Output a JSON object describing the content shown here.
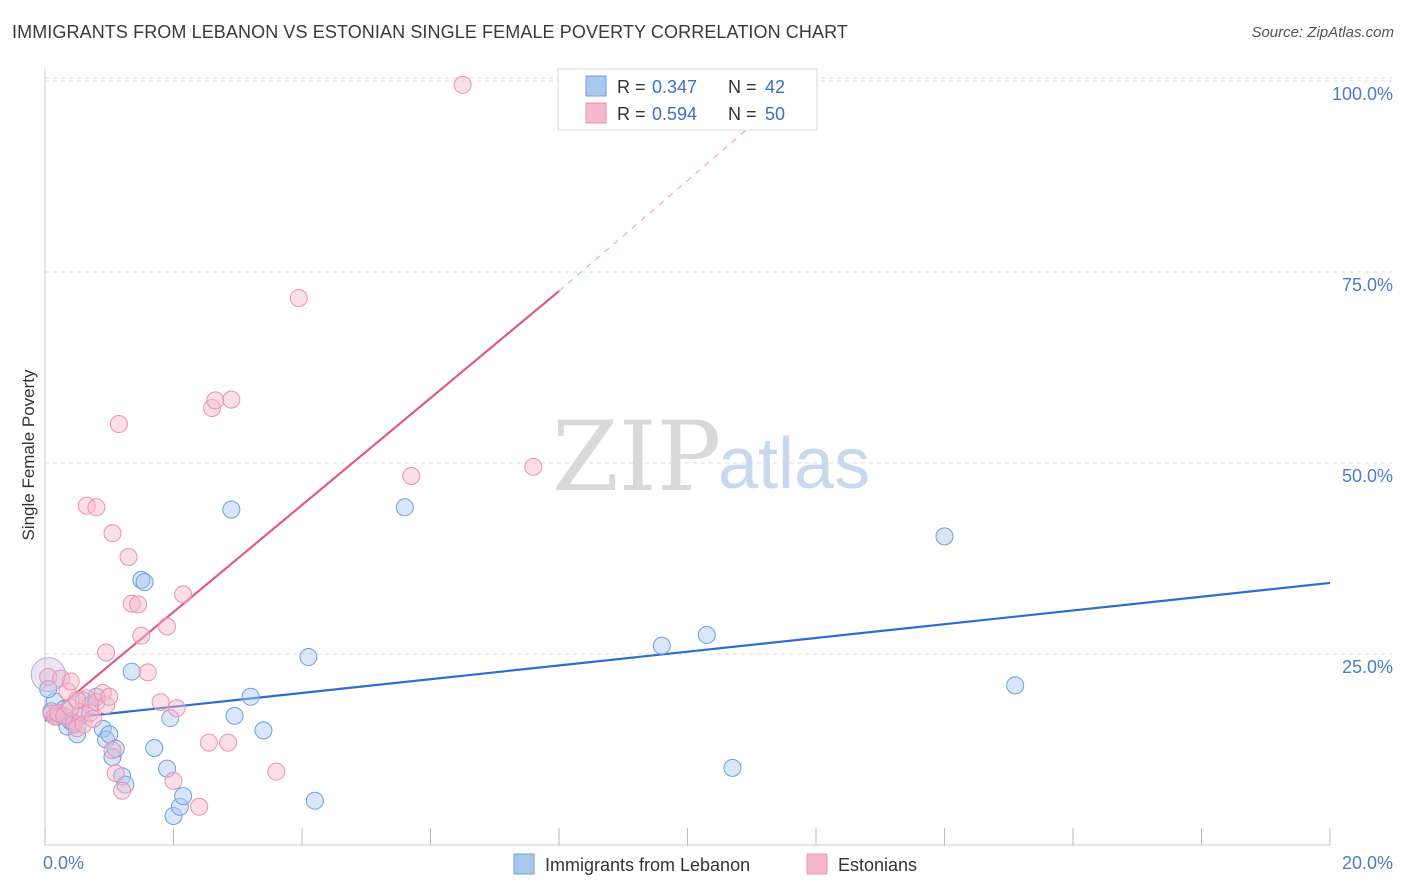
{
  "title": "IMMIGRANTS FROM LEBANON VS ESTONIAN SINGLE FEMALE POVERTY CORRELATION CHART",
  "source": "Source: ZipAtlas.com",
  "watermark": {
    "zip": "ZIP",
    "atlas": "atlas"
  },
  "legend_top": {
    "rows": [
      {
        "r_label": "R = ",
        "r_value": "0.347",
        "n_label": "N = ",
        "n_value": "42",
        "color": "#a8c8f0"
      },
      {
        "r_label": "R = ",
        "r_value": "0.594",
        "n_label": "N = ",
        "n_value": "50",
        "color": "#f5b8cc"
      }
    ]
  },
  "legend_bottom": [
    {
      "label": "Immigrants from Lebanon",
      "color": "#a8c8f0"
    },
    {
      "label": "Estonians",
      "color": "#f5b8cc"
    }
  ],
  "chart_data": {
    "type": "scatter",
    "title": "IMMIGRANTS FROM LEBANON VS ESTONIAN SINGLE FEMALE POVERTY CORRELATION CHART",
    "xlabel": "",
    "ylabel": "Single Female Poverty",
    "xlim": [
      0,
      20
    ],
    "ylim": [
      0,
      100
    ],
    "x_tick_labels": [
      "0.0%",
      "20.0%"
    ],
    "y_ticks": [
      25,
      50,
      75,
      100
    ],
    "y_tick_labels": [
      "25.0%",
      "50.0%",
      "75.0%",
      "100.0%"
    ],
    "grid": true,
    "series": [
      {
        "name": "Immigrants from Lebanon",
        "color": "#6fa0e0",
        "line_color": "#2a6fd0",
        "trend": {
          "x0": 0,
          "y0": 16.3,
          "x1": 20,
          "y1": 34.3
        },
        "points": [
          [
            0.1,
            17.5
          ],
          [
            0.15,
            18.8
          ],
          [
            0.2,
            16.8
          ],
          [
            0.25,
            17.0
          ],
          [
            0.3,
            17.8
          ],
          [
            0.35,
            15.5
          ],
          [
            0.4,
            16.2
          ],
          [
            0.45,
            15.8
          ],
          [
            0.5,
            14.5
          ],
          [
            0.55,
            16.9
          ],
          [
            0.6,
            18.9
          ],
          [
            0.7,
            18.3
          ],
          [
            0.8,
            19.4
          ],
          [
            0.9,
            15.2
          ],
          [
            0.95,
            13.8
          ],
          [
            1.0,
            14.5
          ],
          [
            1.05,
            11.5
          ],
          [
            1.1,
            12.6
          ],
          [
            1.2,
            9.0
          ],
          [
            1.25,
            7.9
          ],
          [
            1.35,
            22.7
          ],
          [
            1.5,
            34.7
          ],
          [
            1.55,
            34.4
          ],
          [
            1.7,
            12.7
          ],
          [
            1.9,
            10.0
          ],
          [
            1.95,
            16.6
          ],
          [
            2.0,
            3.8
          ],
          [
            2.1,
            5.0
          ],
          [
            2.15,
            6.4
          ],
          [
            2.9,
            43.9
          ],
          [
            2.95,
            16.9
          ],
          [
            3.2,
            19.4
          ],
          [
            3.4,
            15.0
          ],
          [
            4.1,
            24.6
          ],
          [
            4.2,
            5.8
          ],
          [
            5.6,
            44.2
          ],
          [
            9.6,
            26.1
          ],
          [
            10.3,
            27.5
          ],
          [
            10.7,
            10.1
          ],
          [
            14.0,
            40.4
          ],
          [
            15.1,
            20.9
          ],
          [
            0.05,
            20.4
          ]
        ]
      },
      {
        "name": "Estonians",
        "color": "#f090b0",
        "line_color": "#e05a8a",
        "trend": {
          "x0": 0,
          "y0": 16.5,
          "x1": 8.0,
          "y1": 72.5
        },
        "trend_ext": {
          "x0": 8.0,
          "y0": 72.5,
          "x1": 11.8,
          "y1": 100
        },
        "points": [
          [
            0.05,
            22.0
          ],
          [
            0.1,
            17.2
          ],
          [
            0.15,
            16.8
          ],
          [
            0.2,
            17.3
          ],
          [
            0.25,
            21.8
          ],
          [
            0.35,
            20.1
          ],
          [
            0.4,
            21.4
          ],
          [
            0.45,
            16.0
          ],
          [
            0.5,
            15.3
          ],
          [
            0.55,
            17.4
          ],
          [
            0.6,
            15.8
          ],
          [
            0.65,
            19.2
          ],
          [
            0.7,
            17.3
          ],
          [
            0.75,
            16.5
          ],
          [
            0.8,
            18.7
          ],
          [
            0.9,
            19.9
          ],
          [
            0.95,
            18.3
          ],
          [
            1.0,
            19.4
          ],
          [
            0.95,
            25.2
          ],
          [
            1.05,
            12.4
          ],
          [
            1.1,
            9.4
          ],
          [
            1.2,
            7.1
          ],
          [
            1.3,
            37.7
          ],
          [
            1.35,
            31.6
          ],
          [
            1.45,
            31.5
          ],
          [
            1.5,
            27.4
          ],
          [
            1.6,
            22.6
          ],
          [
            1.8,
            18.7
          ],
          [
            1.9,
            28.6
          ],
          [
            2.0,
            8.4
          ],
          [
            2.05,
            17.9
          ],
          [
            2.15,
            32.8
          ],
          [
            2.4,
            5.0
          ],
          [
            2.55,
            13.4
          ],
          [
            2.6,
            57.2
          ],
          [
            2.65,
            58.2
          ],
          [
            2.85,
            13.4
          ],
          [
            2.9,
            58.3
          ],
          [
            3.6,
            9.6
          ],
          [
            3.95,
            71.6
          ],
          [
            1.15,
            55.1
          ],
          [
            0.65,
            44.4
          ],
          [
            0.8,
            44.2
          ],
          [
            1.05,
            40.8
          ],
          [
            5.7,
            48.3
          ],
          [
            7.6,
            49.5
          ],
          [
            6.5,
            99.5
          ],
          [
            0.3,
            16.9
          ],
          [
            0.4,
            18.0
          ],
          [
            0.5,
            19.0
          ]
        ]
      }
    ]
  }
}
